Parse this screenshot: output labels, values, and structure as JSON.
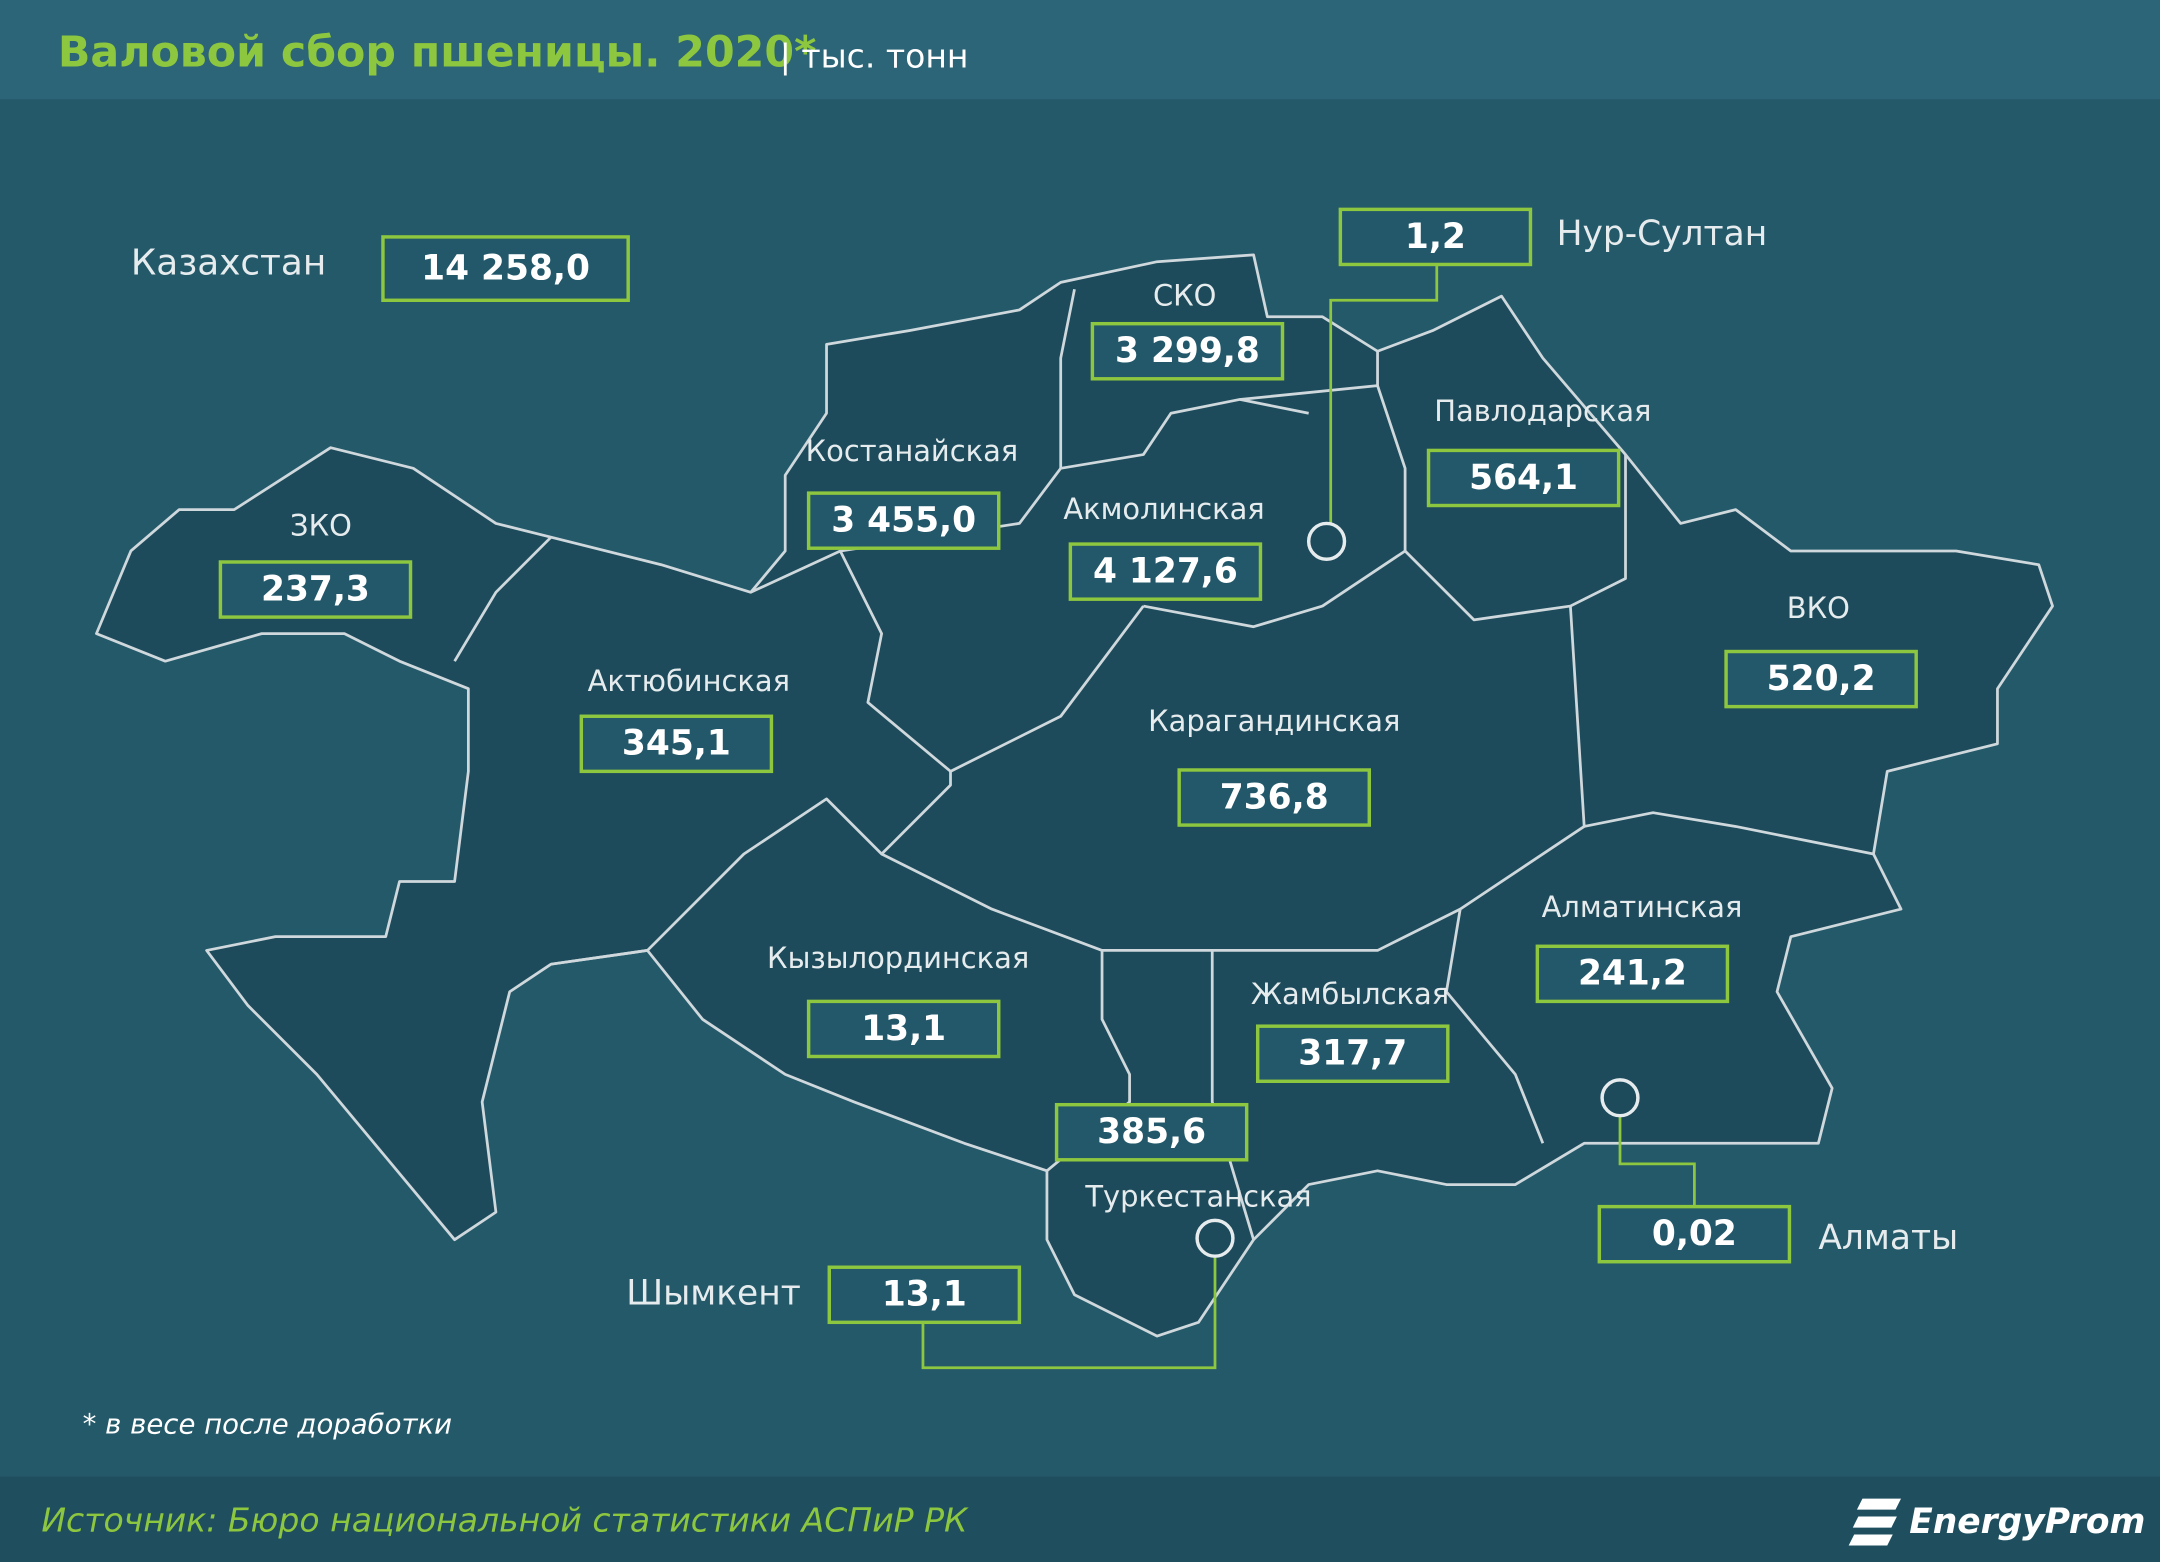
{
  "header": {
    "title": "Валовой сбор пшеницы. 2020*",
    "unit": "| тыс. тонн"
  },
  "country": {
    "label": "Казахстан",
    "value": "14 258,0"
  },
  "regions": [
    {
      "name": "ЗКО",
      "value": "237,3"
    },
    {
      "name": "Костанайская",
      "value": "3 455,0"
    },
    {
      "name": "СКО",
      "value": "3 299,8"
    },
    {
      "name": "Акмолинская",
      "value": "4 127,6"
    },
    {
      "name": "Павлодарская",
      "value": "564,1"
    },
    {
      "name": "ВКО",
      "value": "520,2"
    },
    {
      "name": "Актюбинская",
      "value": "345,1"
    },
    {
      "name": "Карагандинская",
      "value": "736,8"
    },
    {
      "name": "Кызылординская",
      "value": "13,1"
    },
    {
      "name": "Жамбылская",
      "value": "317,7"
    },
    {
      "name": "Алматинская",
      "value": "241,2"
    },
    {
      "name": "Туркестанская",
      "value": "385,6"
    }
  ],
  "cities": [
    {
      "name": "Нур-Султан",
      "value": "1,2"
    },
    {
      "name": "Алматы",
      "value": "0,02"
    },
    {
      "name": "Шымкент",
      "value": "13,1"
    }
  ],
  "footnote": "* в весе после доработки",
  "source": "Источник: Бюро национальной  статистики АСПиР РК",
  "logo": "EnergyProm"
}
